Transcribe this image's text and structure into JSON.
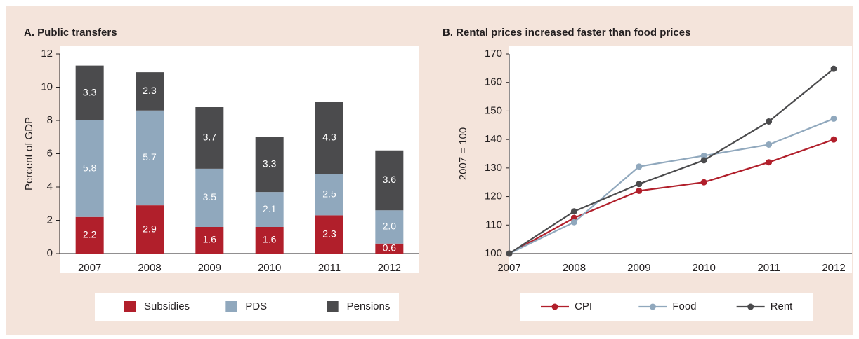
{
  "chart_data": [
    {
      "type": "bar",
      "stacked": true,
      "title": "A. Public transfers",
      "y_label": "Percent of GDP",
      "categories": [
        "2007",
        "2008",
        "2009",
        "2010",
        "2011",
        "2012"
      ],
      "series": [
        {
          "name": "Subsidies",
          "color": "#b11f2b",
          "values": [
            2.2,
            2.9,
            1.6,
            1.6,
            2.3,
            0.6
          ]
        },
        {
          "name": "PDS",
          "color": "#90a8bd",
          "values": [
            5.8,
            5.7,
            3.5,
            2.1,
            2.5,
            2.0
          ],
          "value_labels": [
            "5.8",
            "5.7",
            "3.5",
            "2.1",
            "2.5",
            "2.0"
          ]
        },
        {
          "name": "Pensions",
          "color": "#4b4b4d",
          "values": [
            3.3,
            2.3,
            3.7,
            3.3,
            4.3,
            3.6
          ]
        }
      ],
      "ylim": [
        0,
        12
      ],
      "yticks": [
        0,
        2,
        4,
        6,
        8,
        10,
        12
      ]
    },
    {
      "type": "line",
      "title": "B. Rental prices increased faster than food prices",
      "y_label": "2007 = 100",
      "categories": [
        "2007",
        "2008",
        "2009",
        "2010",
        "2011",
        "2012"
      ],
      "series": [
        {
          "name": "CPI",
          "color": "#b11f2b",
          "values": [
            100,
            112.5,
            122,
            125,
            132,
            140
          ]
        },
        {
          "name": "Food",
          "color": "#90a8bd",
          "values": [
            100,
            111,
            130.5,
            134.3,
            138.2,
            147.3
          ]
        },
        {
          "name": "Rent",
          "color": "#4b4b4d",
          "values": [
            100,
            114.8,
            124.4,
            132.7,
            146.3,
            164.8
          ]
        }
      ],
      "ylim": [
        100,
        170
      ],
      "yticks": [
        100,
        110,
        120,
        130,
        140,
        150,
        160,
        170
      ]
    }
  ]
}
